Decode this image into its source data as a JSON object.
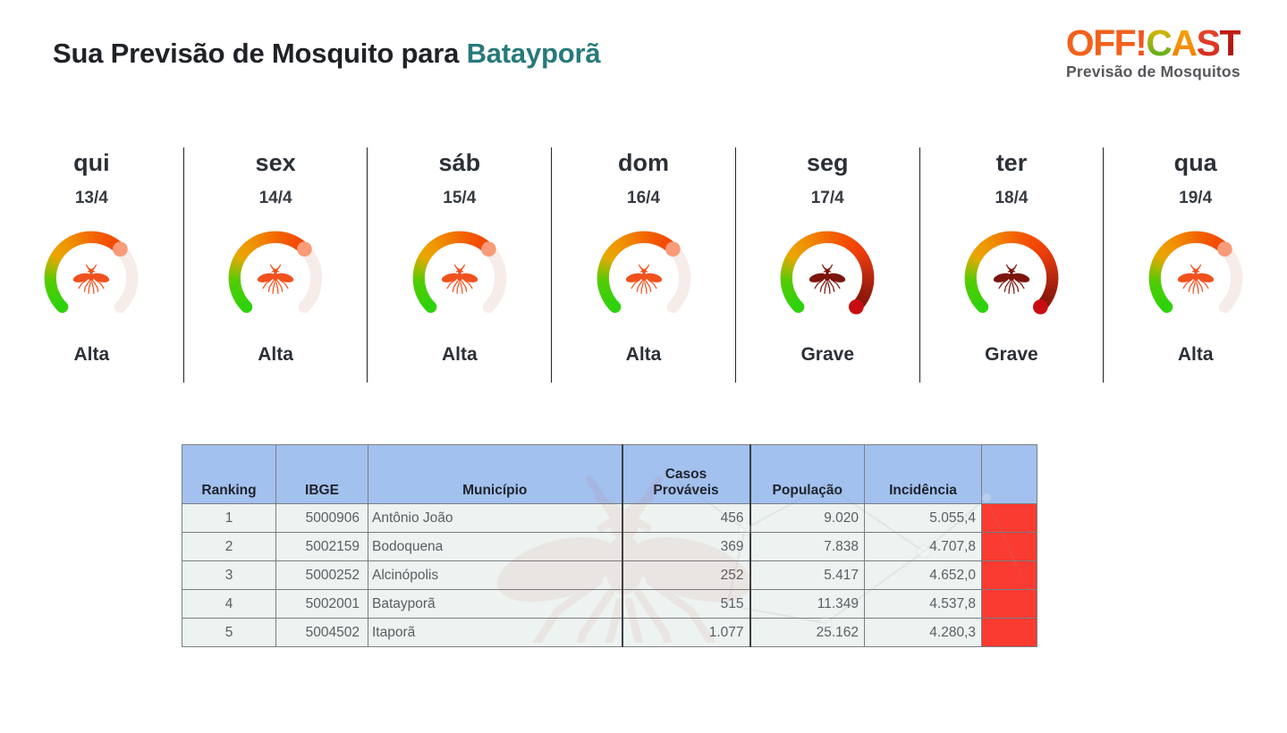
{
  "header": {
    "title_prefix": "Sua Previsão de Mosquito para ",
    "city": "Batayporã",
    "logo": {
      "letters": [
        {
          "ch": "O",
          "c1": "#F2611B",
          "c2": "#F2611B"
        },
        {
          "ch": "F",
          "c1": "#F2611B",
          "c2": "#F2611B"
        },
        {
          "ch": "F",
          "c1": "#F2611B",
          "c2": "#F2611B"
        },
        {
          "ch": "!",
          "c1": "#F2541D",
          "c2": "#F2541D"
        },
        {
          "ch": "C",
          "c1": "#F8B700",
          "c2": "#3EAD25"
        },
        {
          "ch": "A",
          "c1": "#F7A90A",
          "c2": "#F17A00"
        },
        {
          "ch": "S",
          "c1": "#E94F2E",
          "c2": "#D2251C"
        },
        {
          "ch": "T",
          "c1": "#C92019",
          "c2": "#A01410"
        }
      ],
      "subtitle": "Previsão de Mosquitos"
    }
  },
  "colors": {
    "accent_teal": "#27797B",
    "title_text": "#1F2226"
  },
  "forecast": {
    "days": [
      {
        "day": "qui",
        "date": "13/4",
        "level": "Alta",
        "fill": 0.667
      },
      {
        "day": "sex",
        "date": "14/4",
        "level": "Alta",
        "fill": 0.667
      },
      {
        "day": "sáb",
        "date": "15/4",
        "level": "Alta",
        "fill": 0.667
      },
      {
        "day": "dom",
        "date": "16/4",
        "level": "Alta",
        "fill": 0.667
      },
      {
        "day": "seg",
        "date": "17/4",
        "level": "Grave",
        "fill": 1.0
      },
      {
        "day": "ter",
        "date": "18/4",
        "level": "Grave",
        "fill": 1.0
      },
      {
        "day": "qua",
        "date": "19/4",
        "level": "Alta",
        "fill": 0.667
      }
    ],
    "gauge": {
      "track_color": "#F6ECE9",
      "scale": [
        [
          0.0,
          "#2ED20B"
        ],
        [
          0.15,
          "#52CC04"
        ],
        [
          0.28,
          "#E9A800"
        ],
        [
          0.4,
          "#F08C00"
        ],
        [
          0.52,
          "#F36203"
        ],
        [
          0.62,
          "#F34A05"
        ],
        [
          0.7,
          "#E93D0C"
        ],
        [
          0.8,
          "#C22D10"
        ],
        [
          0.9,
          "#9A1D0C"
        ],
        [
          1.0,
          "#7C150A"
        ]
      ],
      "alta_icon_color": "#F1511D",
      "grave_icon_color": "#7B150D",
      "alta_dot_color": "#F89B78",
      "grave_dot_color": "#C80D12"
    }
  },
  "table": {
    "header_bg": "#A3C1EE",
    "risk_color": "#FA3B32",
    "columns": [
      "Ranking",
      "IBGE",
      "Município",
      "Casos Prováveis",
      "População",
      "Incidência",
      ""
    ],
    "rows": [
      {
        "cells": [
          "1",
          "5000906",
          "Antônio João",
          "456",
          "9.020",
          "5.055,4",
          ""
        ]
      },
      {
        "cells": [
          "2",
          "5002159",
          "Bodoquena",
          "369",
          "7.838",
          "4.707,8",
          ""
        ]
      },
      {
        "cells": [
          "3",
          "5000252",
          "Alcinópolis",
          "252",
          "5.417",
          "4.652,0",
          ""
        ]
      },
      {
        "cells": [
          "4",
          "5002001",
          "Batayporã",
          "515",
          "11.349",
          "4.537,8",
          ""
        ]
      },
      {
        "cells": [
          "5",
          "5004502",
          "Itaporã",
          "1.077",
          "25.162",
          "4.280,3",
          ""
        ]
      }
    ]
  }
}
